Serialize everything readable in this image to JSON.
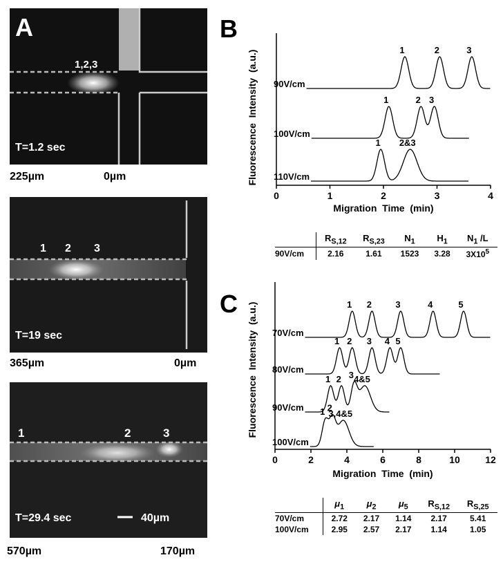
{
  "panel_a": {
    "label": "A",
    "images": [
      {
        "time": "T=1.2 sec",
        "left": "225µm",
        "right": "0µm",
        "peaks": [
          "1,2,3"
        ]
      },
      {
        "time": "T=19 sec",
        "left": "365µm",
        "right": "0µm",
        "peaks": [
          "1",
          "2",
          "3"
        ]
      },
      {
        "time": "T=29.4 sec",
        "left": "570µm",
        "right": "170µm",
        "peaks": [
          "1",
          "2",
          "3"
        ],
        "scale": "40µm"
      }
    ]
  },
  "panel_b": {
    "label": "B",
    "chart": {
      "type": "line",
      "x_label": "Migration  Time  (min)",
      "y_label": "Fluorescence  Intensity  (a.u.)",
      "xlim": [
        0,
        4
      ],
      "xticks": [
        0,
        1,
        2,
        3,
        4
      ],
      "traces": [
        {
          "name": "90V/cm",
          "x_end": 4,
          "peaks": [
            {
              "x": 2.4,
              "label": "1"
            },
            {
              "x": 3.05,
              "label": "2"
            },
            {
              "x": 3.65,
              "label": "3"
            }
          ]
        },
        {
          "name": "100V/cm",
          "x_end": 3.6,
          "peaks": [
            {
              "x": 2.1,
              "label": "1"
            },
            {
              "x": 2.7,
              "label": "2"
            },
            {
              "x": 2.95,
              "label": "3"
            }
          ]
        },
        {
          "name": "110V/cm",
          "x_end": 3.6,
          "peaks": [
            {
              "x": 1.95,
              "label": "1"
            },
            {
              "x": 2.5,
              "label": "2&3"
            }
          ]
        }
      ]
    },
    "table": {
      "header": [
        {
          "main": "R",
          "sub": "S,12"
        },
        {
          "main": "R",
          "sub": "S,23"
        },
        {
          "main": "N",
          "sub": "1"
        },
        {
          "main": "H",
          "sub": "1"
        },
        {
          "main": "N",
          "sub": "1",
          "tail": " /L"
        }
      ],
      "rows": [
        [
          "90V/cm",
          "2.16",
          "1.61",
          "1523",
          "3.28",
          {
            "main": "3X10",
            "sup": "5"
          }
        ]
      ]
    }
  },
  "panel_c": {
    "label": "C",
    "chart": {
      "type": "line",
      "x_label": "Migration  Time  (min)",
      "y_label": "Fluorescence  Intensity  (a.u.)",
      "xlim": [
        0,
        12
      ],
      "xticks": [
        0,
        2,
        4,
        6,
        8,
        10,
        12
      ],
      "traces": [
        {
          "name": "70V/cm",
          "x_end": 12,
          "peaks": [
            {
              "x": 4.3,
              "label": "1"
            },
            {
              "x": 5.4,
              "label": "2"
            },
            {
              "x": 7.0,
              "label": "3"
            },
            {
              "x": 8.8,
              "label": "4"
            },
            {
              "x": 10.5,
              "label": "5"
            }
          ]
        },
        {
          "name": "80V/cm",
          "x_end": 9.2,
          "peaks": [
            {
              "x": 3.6,
              "label": "1"
            },
            {
              "x": 4.3,
              "label": "2"
            },
            {
              "x": 5.4,
              "label": "3"
            },
            {
              "x": 6.4,
              "label": "4"
            },
            {
              "x": 7.0,
              "label": "5"
            }
          ]
        },
        {
          "name": "90V/cm",
          "x_end": 6.4,
          "peaks": [
            {
              "x": 3.1,
              "label": "1"
            },
            {
              "x": 3.7,
              "label": "2"
            },
            {
              "x": 4.4,
              "label": "3"
            },
            {
              "x": 5.0,
              "label": "4&5"
            }
          ]
        },
        {
          "name": "100V/cm",
          "x_end": 5.5,
          "peaks": [
            {
              "x": 2.8,
              "label": "1"
            },
            {
              "x": 3.2,
              "label": "2"
            },
            {
              "x": 3.8,
              "label": "3,4&5"
            }
          ]
        }
      ]
    },
    "table": {
      "header": [
        {
          "main": "μ",
          "sub": "1"
        },
        {
          "main": "μ",
          "sub": "2"
        },
        {
          "main": "μ",
          "sub": "5"
        },
        {
          "main": "R",
          "sub": "S,12"
        },
        {
          "main": "R",
          "sub": "S,25"
        }
      ],
      "rows": [
        [
          "70V/cm",
          "2.72",
          "2.17",
          "1.14",
          "2.17",
          "5.41"
        ],
        [
          "100V/cm",
          "2.95",
          "2.57",
          "2.17",
          "1.14",
          "1.05"
        ]
      ]
    }
  }
}
